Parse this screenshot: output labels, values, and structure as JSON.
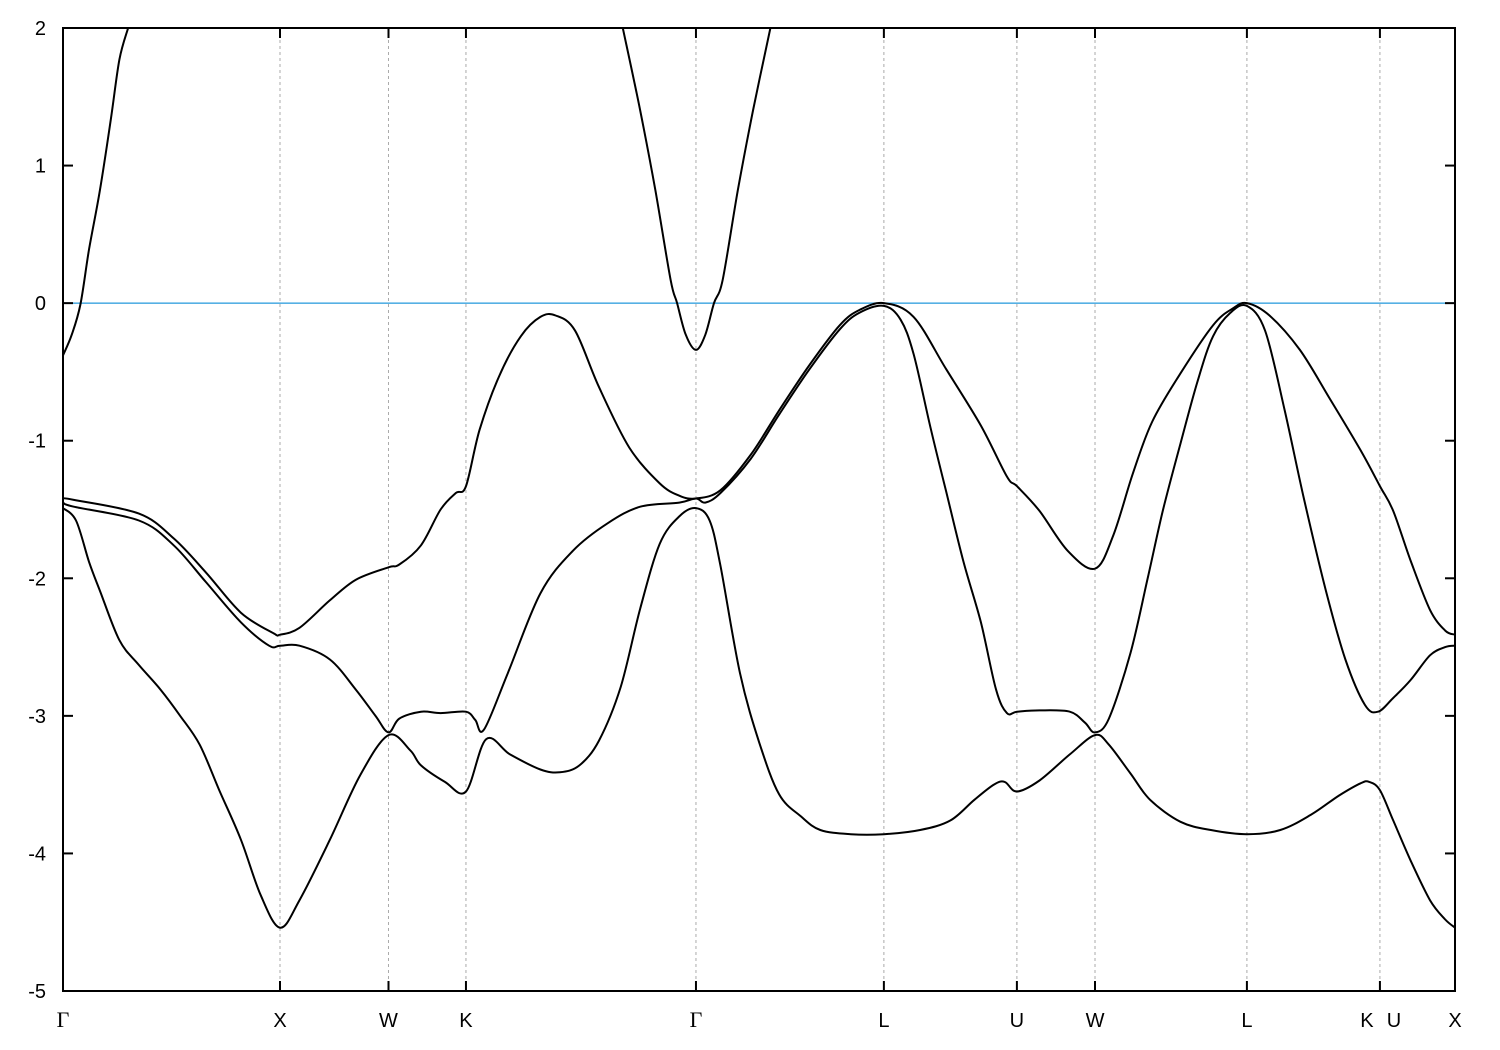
{
  "chart_data": {
    "type": "line",
    "title": "",
    "xlabel": "",
    "ylabel": "",
    "xlim": [
      0,
      6.415
    ],
    "ylim": [
      -5,
      2
    ],
    "grid": "vertical dashed lines at high-symmetry points",
    "legend": "none",
    "yticks": [
      -5,
      -4,
      -3,
      -2,
      -1,
      0,
      1,
      2
    ],
    "ytick_labels": [
      "-5",
      "-4",
      "-3",
      "-2",
      "-1",
      "0",
      "1",
      "2"
    ],
    "xticks": [
      {
        "k": 0,
        "labels": [
          "Γ"
        ]
      },
      {
        "k": 1.0,
        "labels": [
          "X"
        ]
      },
      {
        "k": 1.5,
        "labels": [
          "W"
        ]
      },
      {
        "k": 1.857,
        "labels": [
          "K"
        ]
      },
      {
        "k": 2.917,
        "labels": [
          "Γ"
        ]
      },
      {
        "k": 3.783,
        "labels": [
          "L"
        ]
      },
      {
        "k": 4.396,
        "labels": [
          "U"
        ]
      },
      {
        "k": 4.756,
        "labels": [
          "W"
        ]
      },
      {
        "k": 5.456,
        "labels": [
          "L"
        ]
      },
      {
        "k": 6.069,
        "labels": [
          "K",
          "U"
        ]
      },
      {
        "k": 6.415,
        "labels": [
          "X"
        ]
      }
    ],
    "reference_line": {
      "y": 0,
      "color": "#56b0e4"
    },
    "band_color": "#000000",
    "series": [
      {
        "points": [
          [
            0,
            -0.38
          ],
          [
            0.04,
            -0.23
          ],
          [
            0.08,
            -0.01
          ],
          [
            0.12,
            0.39
          ],
          [
            0.17,
            0.82
          ],
          [
            0.22,
            1.33
          ],
          [
            0.26,
            1.77
          ],
          [
            0.3,
            2.0
          ]
        ]
      },
      {
        "points": [
          [
            2.58,
            2.0
          ],
          [
            2.66,
            1.4
          ],
          [
            2.73,
            0.82
          ],
          [
            2.8,
            0.17
          ],
          [
            2.83,
            0
          ],
          [
            2.87,
            -0.23
          ],
          [
            2.917,
            -0.34
          ],
          [
            2.96,
            -0.23
          ],
          [
            3.0,
            0
          ],
          [
            3.04,
            0.17
          ],
          [
            3.11,
            0.82
          ],
          [
            3.18,
            1.4
          ],
          [
            3.26,
            2.0
          ]
        ]
      },
      {
        "points": [
          [
            0,
            -1.42
          ],
          [
            0.05,
            -1.43
          ],
          [
            0.35,
            -1.53
          ],
          [
            0.51,
            -1.71
          ],
          [
            0.66,
            -1.96
          ],
          [
            0.82,
            -2.25
          ],
          [
            0.97,
            -2.4
          ],
          [
            1.0,
            -2.41
          ],
          [
            1.09,
            -2.36
          ],
          [
            1.23,
            -2.16
          ],
          [
            1.35,
            -2.01
          ],
          [
            1.5,
            -1.92
          ],
          [
            1.55,
            -1.9
          ],
          [
            1.65,
            -1.76
          ],
          [
            1.74,
            -1.5
          ],
          [
            1.81,
            -1.38
          ],
          [
            1.857,
            -1.33
          ],
          [
            1.92,
            -0.92
          ],
          [
            2.01,
            -0.53
          ],
          [
            2.11,
            -0.24
          ],
          [
            2.2,
            -0.1
          ],
          [
            2.27,
            -0.09
          ],
          [
            2.36,
            -0.2
          ],
          [
            2.47,
            -0.61
          ],
          [
            2.61,
            -1.05
          ],
          [
            2.75,
            -1.31
          ],
          [
            2.84,
            -1.4
          ],
          [
            2.917,
            -1.42
          ],
          [
            3.03,
            -1.36
          ],
          [
            3.17,
            -1.1
          ],
          [
            3.3,
            -0.78
          ],
          [
            3.44,
            -0.45
          ],
          [
            3.58,
            -0.16
          ],
          [
            3.67,
            -0.05
          ],
          [
            3.783,
            0
          ],
          [
            3.92,
            -0.1
          ],
          [
            4.07,
            -0.48
          ],
          [
            4.23,
            -0.89
          ],
          [
            4.35,
            -1.26
          ],
          [
            4.396,
            -1.33
          ],
          [
            4.5,
            -1.51
          ],
          [
            4.63,
            -1.8
          ],
          [
            4.756,
            -1.93
          ],
          [
            4.84,
            -1.69
          ],
          [
            4.93,
            -1.24
          ],
          [
            5.02,
            -0.86
          ],
          [
            5.15,
            -0.51
          ],
          [
            5.3,
            -0.16
          ],
          [
            5.39,
            -0.04
          ],
          [
            5.456,
            0
          ],
          [
            5.56,
            -0.09
          ],
          [
            5.7,
            -0.34
          ],
          [
            5.84,
            -0.7
          ],
          [
            5.98,
            -1.07
          ],
          [
            6.069,
            -1.33
          ],
          [
            6.13,
            -1.51
          ],
          [
            6.21,
            -1.87
          ],
          [
            6.3,
            -2.23
          ],
          [
            6.37,
            -2.38
          ],
          [
            6.415,
            -2.41
          ]
        ]
      },
      {
        "points": [
          [
            0,
            -1.45
          ],
          [
            0.05,
            -1.48
          ],
          [
            0.35,
            -1.58
          ],
          [
            0.51,
            -1.76
          ],
          [
            0.66,
            -2.03
          ],
          [
            0.82,
            -2.32
          ],
          [
            0.95,
            -2.49
          ],
          [
            1.0,
            -2.49
          ],
          [
            1.09,
            -2.49
          ],
          [
            1.23,
            -2.59
          ],
          [
            1.35,
            -2.81
          ],
          [
            1.44,
            -3.0
          ],
          [
            1.5,
            -3.12
          ],
          [
            1.55,
            -3.02
          ],
          [
            1.65,
            -2.97
          ],
          [
            1.74,
            -2.98
          ],
          [
            1.857,
            -2.97
          ],
          [
            1.9,
            -3.03
          ],
          [
            1.94,
            -3.1
          ],
          [
            2.05,
            -2.69
          ],
          [
            2.2,
            -2.11
          ],
          [
            2.35,
            -1.8
          ],
          [
            2.51,
            -1.6
          ],
          [
            2.66,
            -1.48
          ],
          [
            2.84,
            -1.45
          ],
          [
            2.917,
            -1.42
          ],
          [
            2.96,
            -1.45
          ],
          [
            3.03,
            -1.38
          ],
          [
            3.17,
            -1.13
          ],
          [
            3.3,
            -0.81
          ],
          [
            3.44,
            -0.48
          ],
          [
            3.58,
            -0.19
          ],
          [
            3.67,
            -0.07
          ],
          [
            3.783,
            -0.02
          ],
          [
            3.86,
            -0.12
          ],
          [
            3.92,
            -0.37
          ],
          [
            4.0,
            -0.92
          ],
          [
            4.07,
            -1.37
          ],
          [
            4.15,
            -1.88
          ],
          [
            4.23,
            -2.32
          ],
          [
            4.3,
            -2.81
          ],
          [
            4.35,
            -2.98
          ],
          [
            4.396,
            -2.97
          ],
          [
            4.5,
            -2.96
          ],
          [
            4.64,
            -2.97
          ],
          [
            4.71,
            -3.05
          ],
          [
            4.756,
            -3.12
          ],
          [
            4.82,
            -3.02
          ],
          [
            4.92,
            -2.54
          ],
          [
            5.0,
            -1.99
          ],
          [
            5.07,
            -1.5
          ],
          [
            5.15,
            -1.02
          ],
          [
            5.23,
            -0.56
          ],
          [
            5.3,
            -0.24
          ],
          [
            5.38,
            -0.07
          ],
          [
            5.456,
            -0.02
          ],
          [
            5.54,
            -0.2
          ],
          [
            5.63,
            -0.78
          ],
          [
            5.72,
            -1.43
          ],
          [
            5.82,
            -2.09
          ],
          [
            5.91,
            -2.59
          ],
          [
            6.0,
            -2.92
          ],
          [
            6.06,
            -2.97
          ],
          [
            6.13,
            -2.87
          ],
          [
            6.21,
            -2.74
          ],
          [
            6.3,
            -2.56
          ],
          [
            6.37,
            -2.5
          ],
          [
            6.415,
            -2.49
          ]
        ]
      },
      {
        "points": [
          [
            0,
            -1.49
          ],
          [
            0.06,
            -1.58
          ],
          [
            0.12,
            -1.88
          ],
          [
            0.17,
            -2.09
          ],
          [
            0.26,
            -2.45
          ],
          [
            0.35,
            -2.63
          ],
          [
            0.45,
            -2.81
          ],
          [
            0.54,
            -3.0
          ],
          [
            0.63,
            -3.21
          ],
          [
            0.72,
            -3.54
          ],
          [
            0.82,
            -3.9
          ],
          [
            0.91,
            -4.3
          ],
          [
            1.0,
            -4.54
          ],
          [
            1.09,
            -4.34
          ],
          [
            1.23,
            -3.9
          ],
          [
            1.37,
            -3.43
          ],
          [
            1.5,
            -3.14
          ],
          [
            1.6,
            -3.25
          ],
          [
            1.65,
            -3.36
          ],
          [
            1.76,
            -3.48
          ],
          [
            1.857,
            -3.55
          ],
          [
            1.95,
            -3.17
          ],
          [
            2.06,
            -3.28
          ],
          [
            2.2,
            -3.39
          ],
          [
            2.29,
            -3.41
          ],
          [
            2.38,
            -3.36
          ],
          [
            2.47,
            -3.18
          ],
          [
            2.57,
            -2.79
          ],
          [
            2.66,
            -2.22
          ],
          [
            2.75,
            -1.75
          ],
          [
            2.84,
            -1.55
          ],
          [
            2.917,
            -1.49
          ],
          [
            2.98,
            -1.58
          ],
          [
            3.03,
            -1.91
          ],
          [
            3.12,
            -2.69
          ],
          [
            3.21,
            -3.2
          ],
          [
            3.3,
            -3.57
          ],
          [
            3.4,
            -3.73
          ],
          [
            3.49,
            -3.83
          ],
          [
            3.63,
            -3.86
          ],
          [
            3.783,
            -3.86
          ],
          [
            3.95,
            -3.83
          ],
          [
            4.09,
            -3.76
          ],
          [
            4.2,
            -3.61
          ],
          [
            4.29,
            -3.5
          ],
          [
            4.34,
            -3.48
          ],
          [
            4.396,
            -3.55
          ],
          [
            4.5,
            -3.47
          ],
          [
            4.64,
            -3.28
          ],
          [
            4.756,
            -3.14
          ],
          [
            4.82,
            -3.21
          ],
          [
            4.92,
            -3.42
          ],
          [
            5.01,
            -3.61
          ],
          [
            5.15,
            -3.77
          ],
          [
            5.29,
            -3.83
          ],
          [
            5.456,
            -3.86
          ],
          [
            5.61,
            -3.83
          ],
          [
            5.75,
            -3.72
          ],
          [
            5.88,
            -3.58
          ],
          [
            5.98,
            -3.49
          ],
          [
            6.02,
            -3.48
          ],
          [
            6.069,
            -3.54
          ],
          [
            6.13,
            -3.76
          ],
          [
            6.21,
            -4.05
          ],
          [
            6.3,
            -4.34
          ],
          [
            6.37,
            -4.48
          ],
          [
            6.415,
            -4.54
          ]
        ]
      }
    ]
  }
}
